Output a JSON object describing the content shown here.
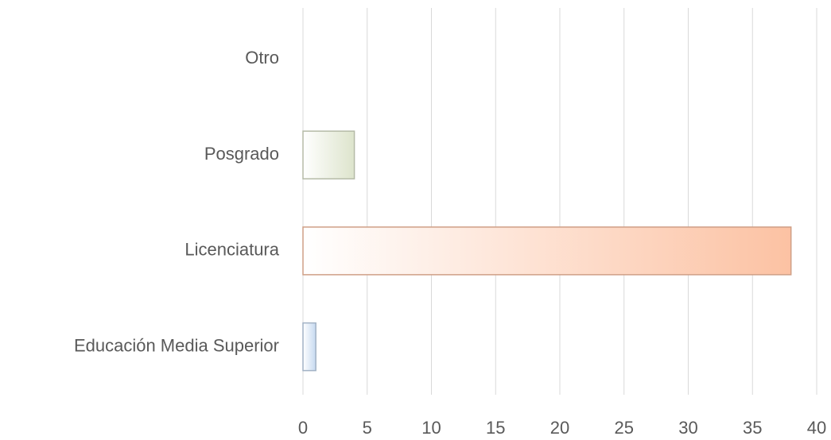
{
  "chart_data": {
    "type": "bar",
    "orientation": "horizontal",
    "categories": [
      "Otro",
      "Posgrado",
      "Licenciatura",
      "Educación Media Superior"
    ],
    "values": [
      0,
      4,
      38,
      1
    ],
    "colors": [
      "#c6d9f0",
      "#dde4cc",
      "#fcc2a3",
      "#c6d9f0"
    ],
    "xlim": [
      0,
      40
    ],
    "xticks": [
      0,
      5,
      10,
      15,
      20,
      25,
      30,
      35,
      40
    ],
    "grid": true
  }
}
